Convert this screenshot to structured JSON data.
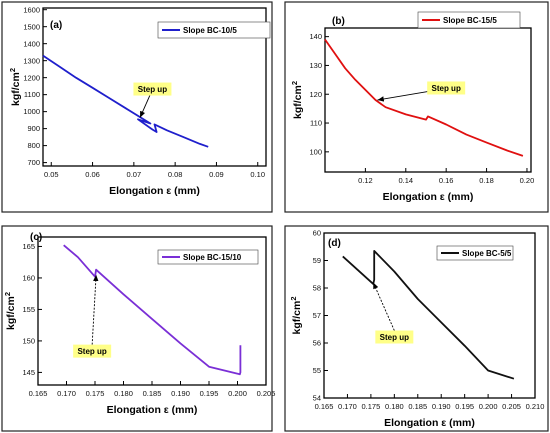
{
  "chart_data": [
    {
      "type": "line",
      "panel_label": "(a)",
      "xlabel": "Elongation ε (mm)",
      "ylabel": "kgf/cm",
      "ylabel_sup": "2",
      "xlim": [
        0.048,
        0.102
      ],
      "ylim": [
        680,
        1610
      ],
      "xticks": [
        0.05,
        0.06,
        0.07,
        0.08,
        0.09,
        0.1
      ],
      "xtick_labels": [
        "0.05",
        "0.06",
        "0.07",
        "0.08",
        "0.09",
        "0.10"
      ],
      "yticks": [
        700,
        800,
        900,
        1000,
        1100,
        1200,
        1300,
        1400,
        1500,
        1600
      ],
      "ytick_labels": [
        "700",
        "800",
        "900",
        "1000",
        "1100",
        "1200",
        "1300",
        "1400",
        "1500",
        "1600"
      ],
      "legend": "top-right",
      "annotation": {
        "text": "Step up",
        "box_at": [
          0.0745,
          1130
        ],
        "arrow_to": [
          0.0715,
          965
        ]
      },
      "series": [
        {
          "name": "Slope BC-10/5",
          "color": "#1f1fcc",
          "x": [
            0.048,
            0.052,
            0.056,
            0.06,
            0.064,
            0.068,
            0.072,
            0.074,
            0.071,
            0.0745,
            0.0755,
            0.075,
            0.078,
            0.082,
            0.086,
            0.088
          ],
          "y": [
            1330,
            1265,
            1200,
            1140,
            1080,
            1020,
            960,
            930,
            955,
            895,
            880,
            925,
            890,
            850,
            810,
            793
          ]
        }
      ]
    },
    {
      "type": "line",
      "panel_label": "(b)",
      "xlabel": "Elongation ε (mm)",
      "ylabel": "kgf/cm",
      "ylabel_sup": "2",
      "xlim": [
        0.1,
        0.202
      ],
      "ylim": [
        93,
        143
      ],
      "xticks": [
        0.12,
        0.14,
        0.16,
        0.18,
        0.2
      ],
      "xtick_labels": [
        "0.12",
        "0.14",
        "0.16",
        "0.18",
        "0.20"
      ],
      "yticks": [
        100,
        110,
        120,
        130,
        140
      ],
      "ytick_labels": [
        "100",
        "110",
        "120",
        "130",
        "140"
      ],
      "legend": "top-right",
      "annotation": {
        "text": "Step up",
        "box_at": [
          0.16,
          122
        ],
        "arrow_to": [
          0.126,
          118
        ]
      },
      "series": [
        {
          "name": "Slope BC-15/5",
          "color": "#e01010",
          "x": [
            0.1,
            0.105,
            0.11,
            0.115,
            0.12,
            0.125,
            0.13,
            0.14,
            0.15,
            0.151,
            0.16,
            0.17,
            0.18,
            0.19,
            0.198
          ],
          "y": [
            139,
            134,
            129,
            125,
            121.5,
            118,
            115.5,
            113,
            111.2,
            112.3,
            109.5,
            106,
            103.2,
            100.5,
            98.6
          ]
        }
      ]
    },
    {
      "type": "line",
      "panel_label": "(c)",
      "xlabel": "Elongation ε (mm)",
      "ylabel": "kgf/cm",
      "ylabel_sup": "2",
      "xlim": [
        0.165,
        0.205
      ],
      "ylim": [
        143,
        166.5
      ],
      "xticks": [
        0.165,
        0.17,
        0.175,
        0.18,
        0.185,
        0.19,
        0.195,
        0.2,
        0.205
      ],
      "xtick_labels": [
        "0.165",
        "0.170",
        "0.175",
        "0.180",
        "0.185",
        "0.190",
        "0.195",
        "0.200",
        "0.205"
      ],
      "yticks": [
        145,
        150,
        155,
        160,
        165
      ],
      "ytick_labels": [
        "145",
        "150",
        "155",
        "160",
        "165"
      ],
      "legend": "top-right",
      "annotation": {
        "text": "Step up",
        "box_at": [
          0.1745,
          148.3
        ],
        "arrow_to": [
          0.1752,
          160.5
        ]
      },
      "series": [
        {
          "name": "Slope BC-15/10",
          "color": "#7a2fd6",
          "x": [
            0.1695,
            0.172,
            0.175,
            0.1752,
            0.18,
            0.185,
            0.19,
            0.195,
            0.2004,
            0.2005,
            0.2005
          ],
          "y": [
            165.2,
            163.3,
            160.2,
            161.3,
            157.4,
            153.5,
            149.6,
            145.9,
            144.7,
            145.0,
            149.3
          ]
        }
      ]
    },
    {
      "type": "line",
      "panel_label": "(d)",
      "xlabel": "Elongation ε (mm)",
      "ylabel": "kgf/cm",
      "ylabel_sup": "2",
      "xlim": [
        0.165,
        0.21
      ],
      "ylim": [
        54,
        60
      ],
      "xticks": [
        0.165,
        0.17,
        0.175,
        0.18,
        0.185,
        0.19,
        0.195,
        0.2,
        0.205,
        0.21
      ],
      "xtick_labels": [
        "0.165",
        "0.170",
        "0.175",
        "0.180",
        "0.185",
        "0.190",
        "0.195",
        "0.200",
        "0.205",
        "0.210"
      ],
      "yticks": [
        54,
        55,
        56,
        57,
        58,
        59,
        60
      ],
      "ytick_labels": [
        "54",
        "55",
        "56",
        "57",
        "58",
        "59",
        "60"
      ],
      "legend": "top-right",
      "annotation": {
        "text": "Step up",
        "box_at": [
          0.18,
          56.2
        ],
        "arrow_to": [
          0.1755,
          58.2
        ]
      },
      "series": [
        {
          "name": "Slope BC-5/5",
          "color": "#111111",
          "x": [
            0.169,
            0.1755,
            0.1757,
            0.1757,
            0.18,
            0.185,
            0.19,
            0.195,
            0.2,
            0.2055
          ],
          "y": [
            59.15,
            58.15,
            58.3,
            59.35,
            58.6,
            57.6,
            56.75,
            55.9,
            55.0,
            54.7
          ]
        }
      ]
    }
  ]
}
